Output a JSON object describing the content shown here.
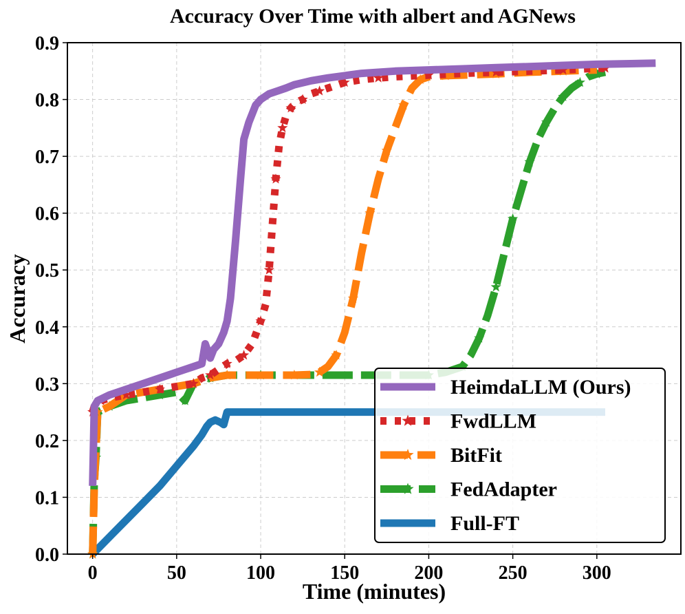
{
  "chart_data": {
    "type": "line",
    "title": "Accuracy Over Time with albert and AGNews",
    "xlabel": "Time (minutes)",
    "ylabel": "Accuracy",
    "xlim": [
      -15,
      350
    ],
    "ylim": [
      0.0,
      0.9
    ],
    "xticks": [
      0,
      50,
      100,
      150,
      200,
      250,
      300
    ],
    "yticks": [
      0.0,
      0.1,
      0.2,
      0.3,
      0.4,
      0.5,
      0.6,
      0.7,
      0.8,
      0.9
    ],
    "xtick_labels": [
      "0",
      "50",
      "100",
      "150",
      "200",
      "250",
      "300"
    ],
    "ytick_labels": [
      "0.0",
      "0.1",
      "0.2",
      "0.3",
      "0.4",
      "0.5",
      "0.6",
      "0.7",
      "0.8",
      "0.9"
    ],
    "grid": true,
    "legend_position": "bottom-right",
    "series": [
      {
        "name": "HeimdaLLM (Ours)",
        "color": "#9467bd",
        "style": "solid",
        "marker": "none",
        "x": [
          0,
          1,
          3,
          10,
          20,
          30,
          40,
          45,
          50,
          55,
          60,
          65,
          67,
          70,
          72,
          75,
          78,
          80,
          82,
          85,
          88,
          90,
          93,
          97,
          100,
          105,
          110,
          115,
          120,
          130,
          140,
          150,
          160,
          180,
          200,
          220,
          240,
          260,
          280,
          300,
          320,
          335
        ],
        "y": [
          0.12,
          0.26,
          0.27,
          0.28,
          0.29,
          0.3,
          0.31,
          0.315,
          0.32,
          0.325,
          0.33,
          0.335,
          0.37,
          0.345,
          0.36,
          0.37,
          0.39,
          0.41,
          0.45,
          0.55,
          0.66,
          0.73,
          0.76,
          0.79,
          0.8,
          0.81,
          0.815,
          0.82,
          0.826,
          0.833,
          0.838,
          0.842,
          0.846,
          0.85,
          0.852,
          0.854,
          0.856,
          0.858,
          0.86,
          0.862,
          0.863,
          0.864
        ]
      },
      {
        "name": "FwdLLM",
        "color": "#d62728",
        "style": "dotted",
        "marker": "star",
        "x": [
          0,
          1,
          5,
          10,
          20,
          30,
          40,
          50,
          60,
          65,
          70,
          75,
          80,
          85,
          90,
          95,
          100,
          103,
          105,
          107,
          109,
          111,
          113,
          115,
          118,
          121,
          125,
          130,
          135,
          140,
          150,
          160,
          170,
          180,
          200,
          220,
          240,
          260,
          280,
          300,
          305
        ],
        "y": [
          0.25,
          0.26,
          0.27,
          0.275,
          0.28,
          0.285,
          0.29,
          0.295,
          0.3,
          0.31,
          0.315,
          0.325,
          0.335,
          0.34,
          0.35,
          0.37,
          0.41,
          0.44,
          0.5,
          0.58,
          0.66,
          0.72,
          0.75,
          0.77,
          0.785,
          0.795,
          0.8,
          0.81,
          0.815,
          0.82,
          0.83,
          0.835,
          0.838,
          0.84,
          0.843,
          0.846,
          0.848,
          0.85,
          0.852,
          0.855,
          0.855
        ]
      },
      {
        "name": "BitFit",
        "color": "#ff7f0e",
        "style": "dashdot",
        "marker": "star",
        "x": [
          0,
          1,
          3,
          10,
          20,
          40,
          60,
          70,
          80,
          100,
          120,
          130,
          135,
          140,
          145,
          150,
          155,
          160,
          165,
          170,
          175,
          180,
          185,
          190,
          195,
          200,
          210,
          220,
          240,
          260,
          280,
          300
        ],
        "y": [
          0.0,
          0.12,
          0.25,
          0.26,
          0.28,
          0.29,
          0.3,
          0.31,
          0.315,
          0.315,
          0.315,
          0.316,
          0.32,
          0.33,
          0.35,
          0.39,
          0.45,
          0.53,
          0.6,
          0.66,
          0.71,
          0.75,
          0.79,
          0.82,
          0.835,
          0.84,
          0.842,
          0.843,
          0.845,
          0.848,
          0.85,
          0.852
        ]
      },
      {
        "name": "FedAdapter",
        "color": "#2ca02c",
        "style": "dashed",
        "marker": "star",
        "x": [
          0,
          1,
          2,
          3,
          10,
          20,
          40,
          50,
          55,
          60,
          70,
          80,
          100,
          150,
          200,
          210,
          220,
          225,
          230,
          235,
          240,
          245,
          250,
          255,
          260,
          265,
          270,
          275,
          280,
          285,
          290,
          295,
          300,
          305
        ],
        "y": [
          0.0,
          0.13,
          0.17,
          0.25,
          0.26,
          0.27,
          0.28,
          0.285,
          0.27,
          0.3,
          0.31,
          0.315,
          0.315,
          0.315,
          0.315,
          0.32,
          0.33,
          0.35,
          0.38,
          0.42,
          0.47,
          0.53,
          0.59,
          0.64,
          0.69,
          0.73,
          0.76,
          0.785,
          0.805,
          0.82,
          0.83,
          0.84,
          0.845,
          0.848
        ]
      },
      {
        "name": "Full-FT",
        "color": "#1f77b4",
        "style": "solid",
        "marker": "none",
        "x": [
          0,
          10,
          20,
          30,
          40,
          50,
          60,
          65,
          68,
          70,
          73,
          76,
          78,
          80,
          90,
          100,
          120,
          150,
          200,
          250,
          300,
          305
        ],
        "y": [
          0.0,
          0.03,
          0.06,
          0.09,
          0.12,
          0.155,
          0.19,
          0.21,
          0.225,
          0.232,
          0.236,
          0.232,
          0.228,
          0.25,
          0.25,
          0.25,
          0.25,
          0.25,
          0.25,
          0.25,
          0.25,
          0.25
        ]
      }
    ]
  }
}
